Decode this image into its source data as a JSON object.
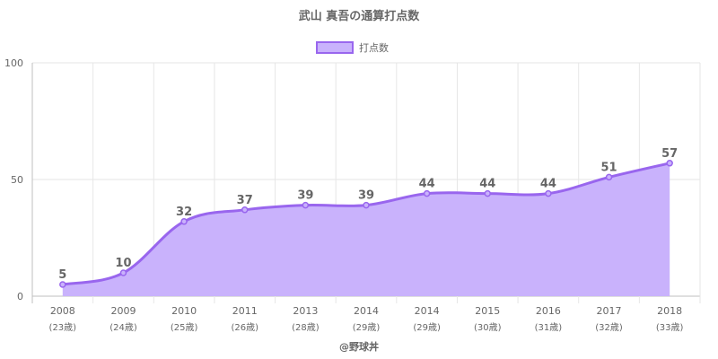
{
  "chart_data": {
    "type": "area",
    "title": "武山 真吾の通算打点数",
    "legend": {
      "label": "打点数",
      "placement": "top-center"
    },
    "categories": [
      "2008",
      "2009",
      "2010",
      "2011",
      "2013",
      "2014",
      "2014",
      "2015",
      "2016",
      "2017",
      "2018"
    ],
    "category_sublabels": [
      "(23歳)",
      "(24歳)",
      "(25歳)",
      "(26歳)",
      "(28歳)",
      "(29歳)",
      "(29歳)",
      "(30歳)",
      "(31歳)",
      "(32歳)",
      "(33歳)"
    ],
    "series": [
      {
        "name": "打点数",
        "values": [
          5,
          10,
          32,
          37,
          39,
          39,
          44,
          44,
          44,
          51,
          57
        ]
      }
    ],
    "ylim": [
      0,
      100
    ],
    "yticks": [
      0,
      50,
      100
    ],
    "grid": true,
    "credit": "@野球丼"
  },
  "colors": {
    "line": "#9966ee",
    "fill": "#c9b2fc",
    "grid": "#e6e6e6",
    "axis": "#bfbfbf",
    "text": "#666666"
  }
}
